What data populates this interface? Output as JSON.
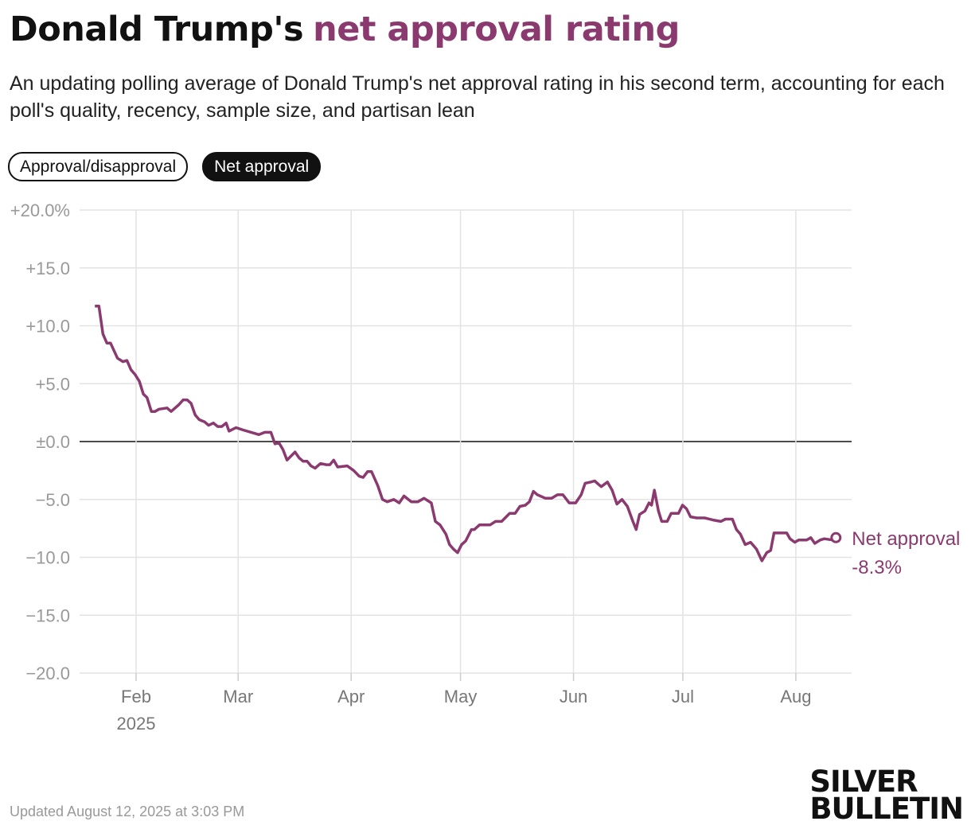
{
  "header": {
    "title_prefix": "Donald Trump's",
    "title_highlight": "net approval rating",
    "subtitle": "An updating polling average of Donald Trump's net approval rating in his second term, accounting for each poll's quality, recency, sample size, and partisan lean",
    "toggles": [
      "Approval/disapproval",
      "Net approval"
    ]
  },
  "chart_data": {
    "type": "line",
    "x": [
      20.7,
      21.8,
      22.9,
      24,
      25,
      26.9,
      28.4,
      29.5,
      30.6,
      31.7,
      32.9,
      34,
      35,
      36.2,
      37.2,
      38.3,
      40.5,
      41.6,
      42.7,
      43.8,
      44.9,
      46,
      47.1,
      48.2,
      49.3,
      50.8,
      51.9,
      53.2,
      54.4,
      55.5,
      56.7,
      57.5,
      59.4,
      61.4,
      64.6,
      65.7,
      67.3,
      69,
      70.1,
      71.2,
      72.3,
      73.4,
      75.6,
      76.7,
      77.8,
      78.9,
      80,
      81.1,
      82.6,
      84.2,
      85.2,
      86.2,
      87.3,
      89.9,
      91.7,
      93.2,
      94.3,
      95.5,
      96.6,
      98.3,
      99.6,
      100.9,
      102.7,
      104.2,
      105.5,
      107.5,
      109.3,
      111,
      113,
      114.1,
      115.4,
      117,
      118,
      119.1,
      120.2,
      121.3,
      122.4,
      124,
      124.8,
      126.2,
      129.1,
      130.6,
      132.3,
      134.5,
      136,
      137.3,
      138.8,
      139.9,
      141,
      142.1,
      144.3,
      146,
      147.6,
      149.1,
      150.8,
      152.6,
      154.1,
      155.2,
      156.7,
      157.8,
      159.6,
      161.3,
      162.6,
      163.9,
      165.3,
      166.8,
      168.3,
      169.2,
      170.1,
      171.6,
      172.7,
      173.4,
      174.2,
      175.3,
      176.2,
      177.7,
      178.8,
      180.8,
      181.9,
      183,
      184.1,
      185.8,
      188,
      190.6,
      192.4,
      193.7,
      195.6,
      196.7,
      197.8,
      199.1,
      200.6,
      202.2,
      203.7,
      205,
      206.1,
      207,
      209.2,
      210.5,
      211.4,
      212.7,
      213.8,
      216,
      217.1,
      218.2,
      219.7,
      220.8,
      223,
      224
    ],
    "series": [
      {
        "name": "Net approval",
        "color": "#8b3a6f",
        "last_value_label": "-8.3%",
        "values": [
          11.7,
          11.7,
          9.3,
          8.5,
          8.5,
          7.2,
          6.9,
          7.0,
          6.2,
          5.8,
          5.2,
          4.1,
          3.8,
          2.6,
          2.6,
          2.8,
          2.9,
          2.6,
          2.9,
          3.2,
          3.6,
          3.6,
          3.3,
          2.3,
          1.9,
          1.7,
          1.4,
          1.6,
          1.3,
          1.3,
          1.6,
          0.9,
          1.2,
          1.0,
          0.7,
          0.6,
          0.8,
          0.8,
          -0.2,
          -0.1,
          -0.7,
          -1.6,
          -0.9,
          -1.4,
          -1.7,
          -1.7,
          -2.1,
          -2.3,
          -1.9,
          -2.0,
          -2.0,
          -1.6,
          -2.2,
          -2.1,
          -2.5,
          -3.0,
          -3.1,
          -2.6,
          -2.6,
          -3.8,
          -5.0,
          -5.2,
          -5.0,
          -5.3,
          -4.7,
          -5.2,
          -5.2,
          -4.9,
          -5.3,
          -6.9,
          -7.2,
          -8.0,
          -8.9,
          -9.3,
          -9.6,
          -8.9,
          -8.6,
          -7.6,
          -7.6,
          -7.2,
          -7.2,
          -6.9,
          -6.9,
          -6.2,
          -6.2,
          -5.6,
          -5.5,
          -5.2,
          -4.3,
          -4.6,
          -4.9,
          -4.9,
          -4.6,
          -4.6,
          -5.3,
          -5.3,
          -4.6,
          -3.6,
          -3.5,
          -3.4,
          -3.9,
          -3.5,
          -4.2,
          -5.4,
          -5.0,
          -5.6,
          -6.9,
          -7.6,
          -6.3,
          -6.0,
          -5.3,
          -5.5,
          -4.2,
          -6.0,
          -6.9,
          -6.9,
          -6.2,
          -6.2,
          -5.5,
          -5.8,
          -6.5,
          -6.6,
          -6.6,
          -6.8,
          -6.9,
          -6.7,
          -6.7,
          -7.6,
          -8.0,
          -8.9,
          -8.7,
          -9.3,
          -10.3,
          -9.6,
          -9.4,
          -7.9,
          -7.9,
          -7.9,
          -8.4,
          -8.7,
          -8.5,
          -8.5,
          -8.3,
          -8.8,
          -8.5,
          -8.4,
          -8.5,
          -8.3
        ]
      }
    ],
    "xlim": [
      16.5,
      228.3
    ],
    "xticks": [
      {
        "value": 32,
        "label": "Feb"
      },
      {
        "value": 60,
        "label": "Mar"
      },
      {
        "value": 91,
        "label": "Apr"
      },
      {
        "value": 121,
        "label": "May"
      },
      {
        "value": 152,
        "label": "Jun"
      },
      {
        "value": 182,
        "label": "Jul"
      },
      {
        "value": 213,
        "label": "Aug"
      }
    ],
    "x_year_label": "2025",
    "ylim": [
      -20,
      20
    ],
    "yticks": [
      {
        "value": 20,
        "label": "+20.0%"
      },
      {
        "value": 15,
        "label": "+15.0"
      },
      {
        "value": 10,
        "label": "+10.0"
      },
      {
        "value": 5,
        "label": "+5.0"
      },
      {
        "value": 0,
        "label": "±0.0"
      },
      {
        "value": -5,
        "label": "−5.0"
      },
      {
        "value": -10,
        "label": "−10.0"
      },
      {
        "value": -15,
        "label": "−15.0"
      },
      {
        "value": -20,
        "label": "−20.0"
      }
    ],
    "grid": true
  },
  "footer": {
    "updated": "Updated August 12, 2025 at 3:03 PM",
    "logo_top": "SILVER",
    "logo_bottom": "BULLETIN"
  }
}
